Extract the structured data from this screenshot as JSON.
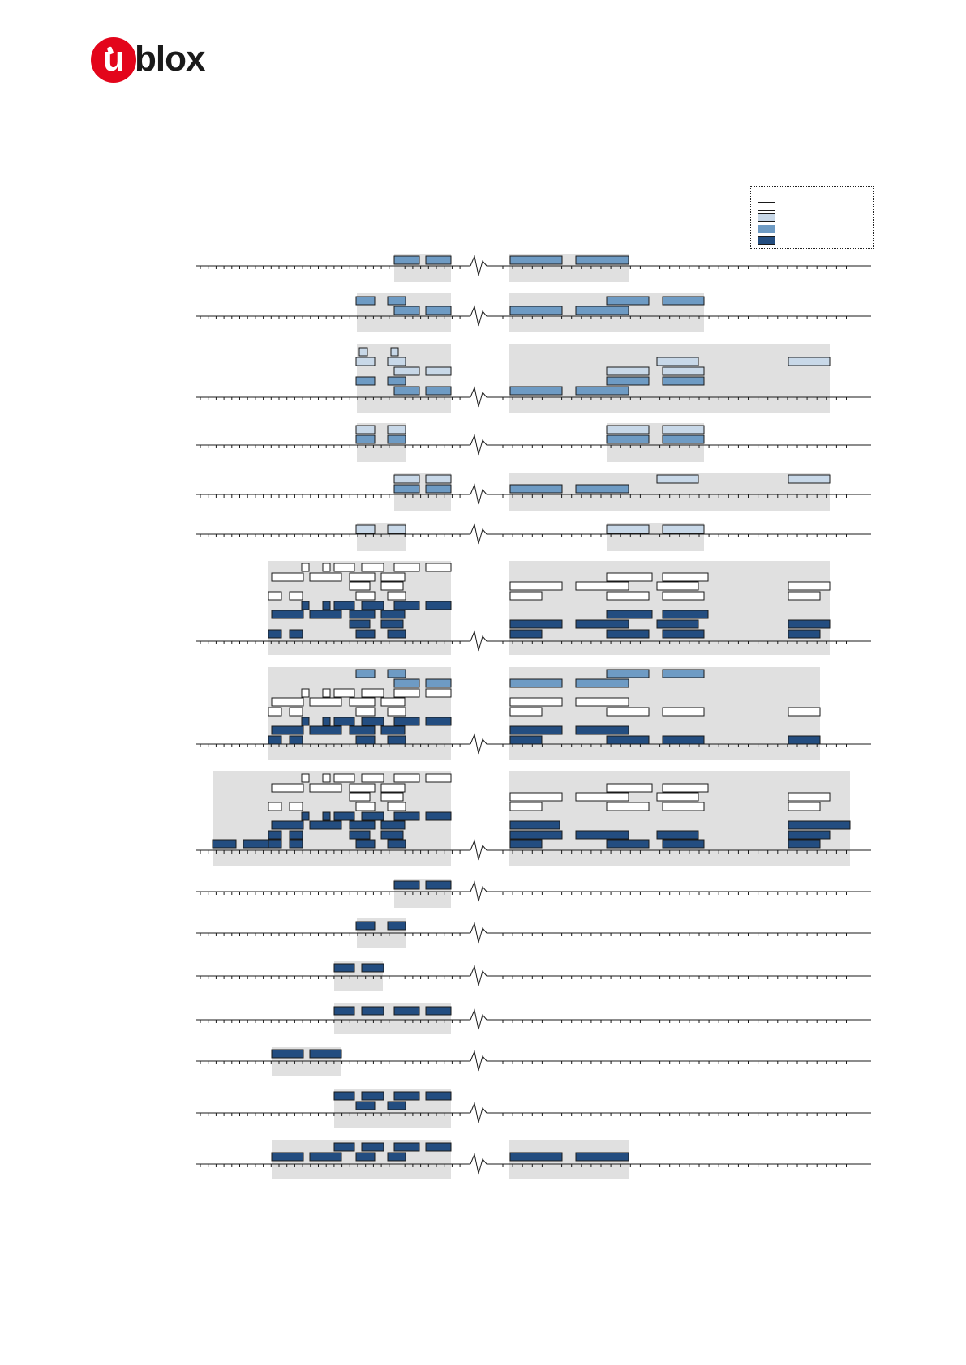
{
  "logo": {
    "text_u": "u",
    "text_rest": "blox",
    "accent_color": "#e3051b"
  },
  "legend": {
    "items": [
      {
        "swatch_color": "#ffffff",
        "label": ""
      },
      {
        "swatch_color": "#c8d8e8",
        "label": ""
      },
      {
        "swatch_color": "#6e9bc4",
        "label": ""
      },
      {
        "swatch_color": "#234d80",
        "label": ""
      }
    ]
  },
  "colors": {
    "white": "#ffffff",
    "light": "#c8d8e8",
    "medium": "#6e9bc4",
    "dark": "#234d80",
    "band": "#e0e0e0",
    "axis": "#1a1a1a"
  },
  "diagram": {
    "row_count": 16,
    "axis_break": "zigzag"
  }
}
